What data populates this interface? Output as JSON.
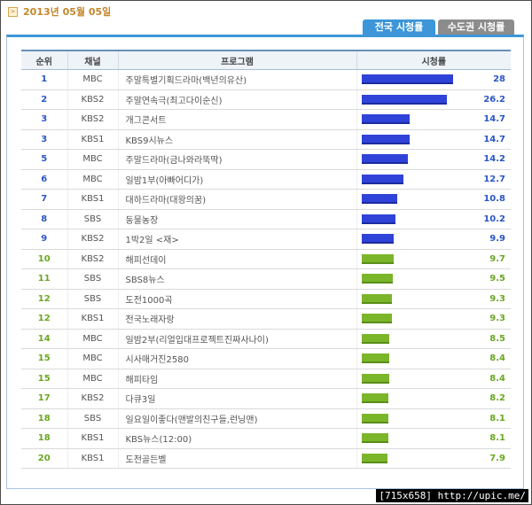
{
  "header": {
    "date": "2013년 05월 05일",
    "date_icon": ">"
  },
  "tabs": [
    {
      "label": "전국 시청률",
      "active": true
    },
    {
      "label": "수도권 시청률",
      "active": false
    }
  ],
  "table": {
    "columns": [
      "순위",
      "채널",
      "프로그램",
      "시청률"
    ],
    "rating_max": 28,
    "rows": [
      {
        "rank": "1",
        "channel": "MBC",
        "program": "주말특별기획드라마(백년의유산)",
        "rating": "28",
        "tier": "top"
      },
      {
        "rank": "2",
        "channel": "KBS2",
        "program": "주말연속극(최고다이순신)",
        "rating": "26.2",
        "tier": "top"
      },
      {
        "rank": "3",
        "channel": "KBS2",
        "program": "개그콘서트",
        "rating": "14.7",
        "tier": "top"
      },
      {
        "rank": "3",
        "channel": "KBS1",
        "program": "KBS9시뉴스",
        "rating": "14.7",
        "tier": "top"
      },
      {
        "rank": "5",
        "channel": "MBC",
        "program": "주말드라마(금나와라뚝딱)",
        "rating": "14.2",
        "tier": "top"
      },
      {
        "rank": "6",
        "channel": "MBC",
        "program": "일밤1부(아빠어디가)",
        "rating": "12.7",
        "tier": "top"
      },
      {
        "rank": "7",
        "channel": "KBS1",
        "program": "대하드라마(대왕의꿈)",
        "rating": "10.8",
        "tier": "top"
      },
      {
        "rank": "8",
        "channel": "SBS",
        "program": "동물농장",
        "rating": "10.2",
        "tier": "top"
      },
      {
        "rank": "9",
        "channel": "KBS2",
        "program": "1박2일 <재>",
        "rating": "9.9",
        "tier": "top"
      },
      {
        "rank": "10",
        "channel": "KBS2",
        "program": "해피선데이",
        "rating": "9.7",
        "tier": "low"
      },
      {
        "rank": "11",
        "channel": "SBS",
        "program": "SBS8뉴스",
        "rating": "9.5",
        "tier": "low"
      },
      {
        "rank": "12",
        "channel": "SBS",
        "program": "도전1000곡",
        "rating": "9.3",
        "tier": "low"
      },
      {
        "rank": "12",
        "channel": "KBS1",
        "program": "전국노래자랑",
        "rating": "9.3",
        "tier": "low"
      },
      {
        "rank": "14",
        "channel": "MBC",
        "program": "일밤2부(리얼입대프로젝트진짜사나이)",
        "rating": "8.5",
        "tier": "low"
      },
      {
        "rank": "15",
        "channel": "MBC",
        "program": "시사매거진2580",
        "rating": "8.4",
        "tier": "low"
      },
      {
        "rank": "15",
        "channel": "MBC",
        "program": "해피타임",
        "rating": "8.4",
        "tier": "low"
      },
      {
        "rank": "17",
        "channel": "KBS2",
        "program": "다큐3일",
        "rating": "8.2",
        "tier": "low"
      },
      {
        "rank": "18",
        "channel": "SBS",
        "program": "일요일이좋다(맨발의친구들,런닝맨)",
        "rating": "8.1",
        "tier": "low"
      },
      {
        "rank": "18",
        "channel": "KBS1",
        "program": "KBS뉴스(12:00)",
        "rating": "8.1",
        "tier": "low"
      },
      {
        "rank": "20",
        "channel": "KBS1",
        "program": "도전골든벨",
        "rating": "7.9",
        "tier": "low"
      }
    ]
  },
  "watermark": "[715x658] http://upic.me/",
  "colors": {
    "accent": "#3c96d8",
    "top_bar": "#2f43d8",
    "low_bar": "#7bb52a",
    "date": "#c4862a"
  }
}
